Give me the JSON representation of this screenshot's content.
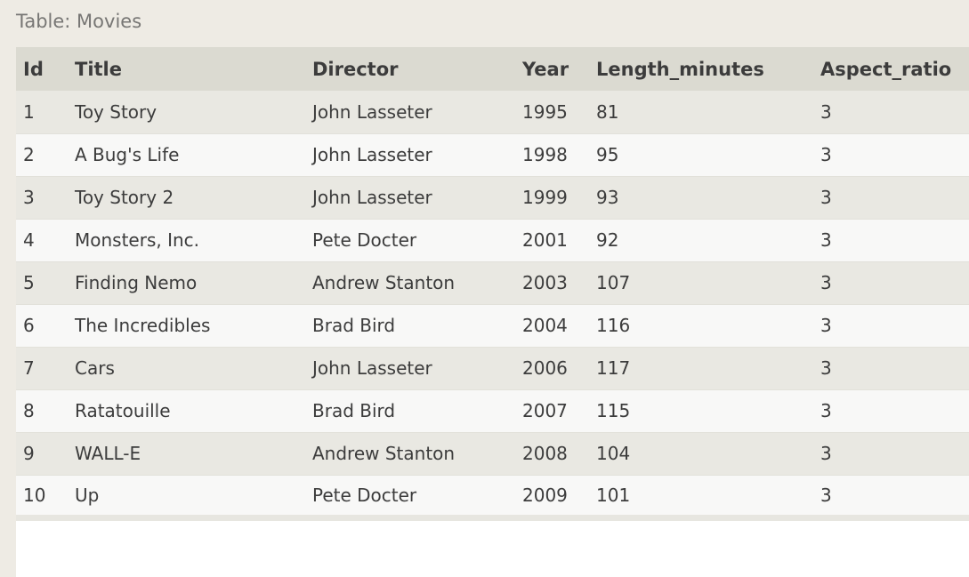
{
  "table": {
    "caption": "Table: Movies",
    "columns": [
      "Id",
      "Title",
      "Director",
      "Year",
      "Length_minutes",
      "Aspect_ratio"
    ],
    "rows": [
      [
        "1",
        "Toy Story",
        "John Lasseter",
        "1995",
        "81",
        "3"
      ],
      [
        "2",
        "A Bug's Life",
        "John Lasseter",
        "1998",
        "95",
        "3"
      ],
      [
        "3",
        "Toy Story 2",
        "John Lasseter",
        "1999",
        "93",
        "3"
      ],
      [
        "4",
        "Monsters, Inc.",
        "Pete Docter",
        "2001",
        "92",
        "3"
      ],
      [
        "5",
        "Finding Nemo",
        "Andrew Stanton",
        "2003",
        "107",
        "3"
      ],
      [
        "6",
        "The Incredibles",
        "Brad Bird",
        "2004",
        "116",
        "3"
      ],
      [
        "7",
        "Cars",
        "John Lasseter",
        "2006",
        "117",
        "3"
      ],
      [
        "8",
        "Ratatouille",
        "Brad Bird",
        "2007",
        "115",
        "3"
      ],
      [
        "9",
        "WALL-E",
        "Andrew Stanton",
        "2008",
        "104",
        "3"
      ],
      [
        "10",
        "Up",
        "Pete Docter",
        "2009",
        "101",
        "3"
      ]
    ]
  },
  "colors": {
    "page_background": "#eeebe4",
    "header_background": "#dbdad1",
    "row_odd": "#e9e8e2",
    "row_even": "#f8f8f7",
    "text": "#3c3c3c",
    "caption_text": "#777674"
  }
}
